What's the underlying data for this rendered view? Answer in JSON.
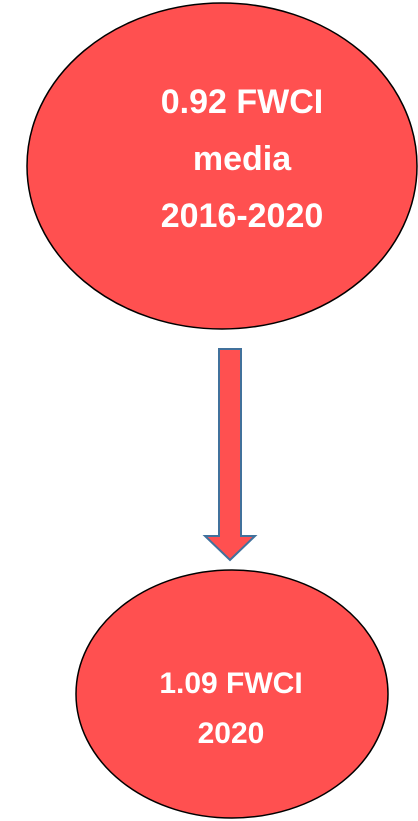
{
  "nodes": [
    {
      "lines": [
        "0.92 FWCI",
        "media",
        "2016-2020"
      ]
    },
    {
      "lines": [
        "1.09 FWCI",
        "2020"
      ]
    }
  ]
}
